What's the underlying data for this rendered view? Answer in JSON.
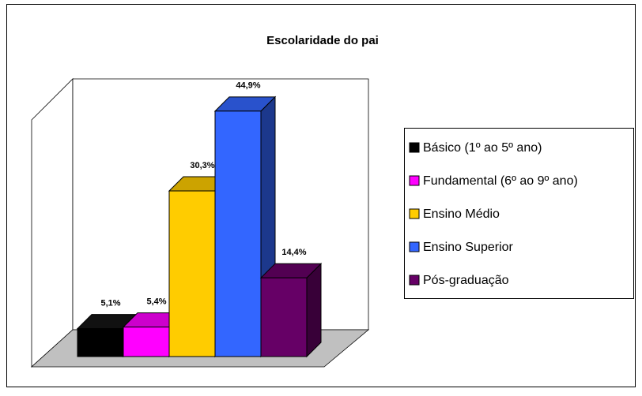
{
  "chart_data": {
    "type": "bar3d",
    "title": "Escolaridade do pai",
    "series": [
      {
        "name": "Básico (1º ao 5º ano)",
        "color": "#000000",
        "values": [
          5.1
        ],
        "value_labels": [
          "5,1%"
        ]
      },
      {
        "name": "Fundamental (6º ao 9º ano)",
        "color": "#ff00ff",
        "values": [
          5.4
        ],
        "value_labels": [
          "5,4%"
        ]
      },
      {
        "name": "Ensino Médio",
        "color": "#ffcc00",
        "values": [
          30.3
        ],
        "value_labels": [
          "30,3%"
        ]
      },
      {
        "name": "Ensino Superior",
        "color": "#3366ff",
        "values": [
          44.9
        ],
        "value_labels": [
          "44,9%"
        ]
      },
      {
        "name": "Pós-graduação",
        "color": "#660066",
        "values": [
          14.4
        ],
        "value_labels": [
          "14,4%"
        ]
      }
    ],
    "legend": "right"
  }
}
